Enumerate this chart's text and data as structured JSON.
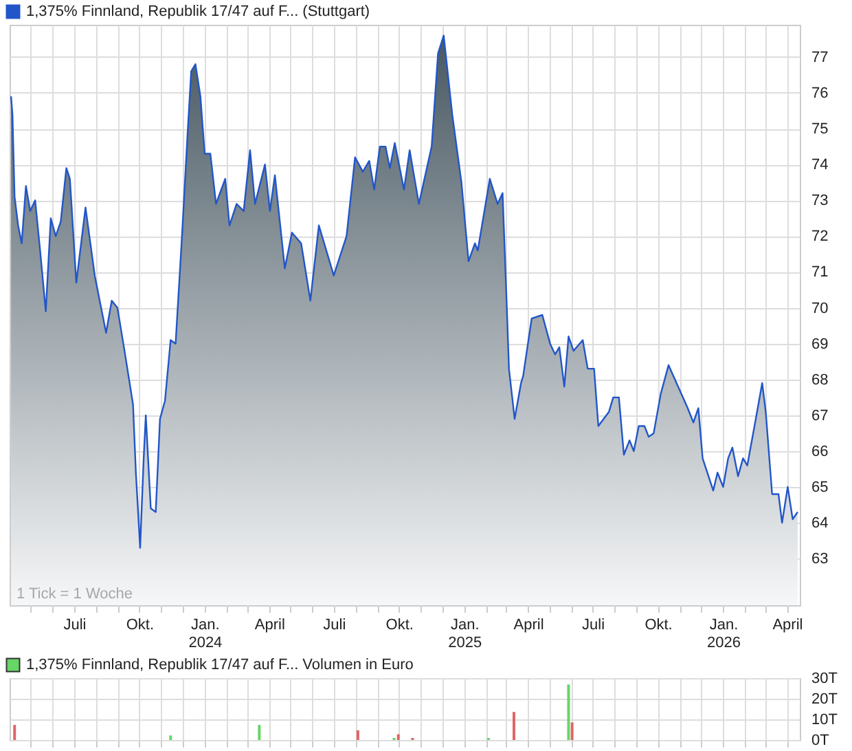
{
  "chart_data": [
    {
      "type": "area",
      "legend": "top left",
      "grid": true,
      "annotations": [
        "1 Tick = 1 Woche"
      ],
      "xlim": [
        "2023-04-01",
        "2026-04-19"
      ],
      "xticks": [
        {
          "value": "2023-05-01",
          "label": null
        },
        {
          "value": "2023-06-01",
          "label": null
        },
        {
          "value": "2023-07-01",
          "label": "Juli"
        },
        {
          "value": "2023-08-01",
          "label": null
        },
        {
          "value": "2023-09-01",
          "label": null
        },
        {
          "value": "2023-10-01",
          "label": "Okt."
        },
        {
          "value": "2023-11-01",
          "label": null
        },
        {
          "value": "2023-12-01",
          "label": null
        },
        {
          "value": "2024-01-01",
          "label": "Jan.\n2024"
        },
        {
          "value": "2024-02-01",
          "label": null
        },
        {
          "value": "2024-03-01",
          "label": null
        },
        {
          "value": "2024-04-01",
          "label": "April"
        },
        {
          "value": "2024-05-01",
          "label": null
        },
        {
          "value": "2024-06-01",
          "label": null
        },
        {
          "value": "2024-07-01",
          "label": "Juli"
        },
        {
          "value": "2024-08-01",
          "label": null
        },
        {
          "value": "2024-09-01",
          "label": null
        },
        {
          "value": "2024-10-01",
          "label": "Okt."
        },
        {
          "value": "2024-11-01",
          "label": null
        },
        {
          "value": "2024-12-01",
          "label": null
        },
        {
          "value": "2025-01-01",
          "label": "Jan.\n2025"
        },
        {
          "value": "2025-02-01",
          "label": null
        },
        {
          "value": "2025-03-01",
          "label": null
        },
        {
          "value": "2025-04-01",
          "label": "April"
        },
        {
          "value": "2025-05-01",
          "label": null
        },
        {
          "value": "2025-06-01",
          "label": null
        },
        {
          "value": "2025-07-01",
          "label": "Juli"
        },
        {
          "value": "2025-08-01",
          "label": null
        },
        {
          "value": "2025-09-01",
          "label": null
        },
        {
          "value": "2025-10-01",
          "label": "Okt."
        },
        {
          "value": "2025-11-01",
          "label": null
        },
        {
          "value": "2025-12-01",
          "label": null
        },
        {
          "value": "2026-01-01",
          "label": "Jan.\n2026"
        },
        {
          "value": "2026-02-01",
          "label": null
        },
        {
          "value": "2026-03-01",
          "label": null
        },
        {
          "value": "2026-04-01",
          "label": "April"
        }
      ],
      "ylim": [
        61.7,
        77.9
      ],
      "yticks": [
        63,
        64,
        65,
        66,
        67,
        68,
        69,
        70,
        71,
        72,
        73,
        74,
        75,
        76,
        77
      ],
      "x": [
        "2023-04-03",
        "2023-04-05",
        "2023-04-08",
        "2023-04-13",
        "2023-04-18",
        "2023-04-24",
        "2023-04-30",
        "2023-05-07",
        "2023-05-14",
        "2023-05-22",
        "2023-05-29",
        "2023-06-05",
        "2023-06-12",
        "2023-06-20",
        "2023-06-25",
        "2023-07-04",
        "2023-07-17",
        "2023-07-30",
        "2023-08-15",
        "2023-08-23",
        "2023-08-31",
        "2023-09-10",
        "2023-09-22",
        "2023-09-26",
        "2023-10-02",
        "2023-10-07",
        "2023-10-10",
        "2023-10-17",
        "2023-10-24",
        "2023-10-30",
        "2023-11-06",
        "2023-11-14",
        "2023-11-21",
        "2023-11-30",
        "2023-12-08",
        "2023-12-13",
        "2023-12-19",
        "2023-12-26",
        "2024-01-01",
        "2024-01-09",
        "2024-01-17",
        "2024-01-30",
        "2024-02-05",
        "2024-02-15",
        "2024-02-25",
        "2024-03-05",
        "2024-03-12",
        "2024-03-26",
        "2024-04-02",
        "2024-04-09",
        "2024-04-23",
        "2024-05-03",
        "2024-05-16",
        "2024-05-29",
        "2024-06-10",
        "2024-07-01",
        "2024-07-19",
        "2024-07-31",
        "2024-08-11",
        "2024-08-20",
        "2024-08-27",
        "2024-09-04",
        "2024-09-12",
        "2024-09-18",
        "2024-09-25",
        "2024-10-08",
        "2024-10-16",
        "2024-10-29",
        "2024-11-16",
        "2024-11-25",
        "2024-12-03",
        "2024-12-15",
        "2024-12-28",
        "2025-01-07",
        "2025-01-16",
        "2025-01-20",
        "2025-02-06",
        "2025-02-17",
        "2025-02-24",
        "2025-03-02",
        "2025-03-05",
        "2025-03-13",
        "2025-03-22",
        "2025-03-25",
        "2025-04-06",
        "2025-04-21",
        "2025-05-02",
        "2025-05-09",
        "2025-05-15",
        "2025-05-22",
        "2025-05-28",
        "2025-06-04",
        "2025-06-17",
        "2025-06-24",
        "2025-07-03",
        "2025-07-09",
        "2025-07-24",
        "2025-07-30",
        "2025-08-07",
        "2025-08-14",
        "2025-08-22",
        "2025-08-28",
        "2025-09-04",
        "2025-09-12",
        "2025-09-18",
        "2025-09-25",
        "2025-10-05",
        "2025-10-16",
        "2025-10-25",
        "2025-11-12",
        "2025-11-20",
        "2025-11-27",
        "2025-12-03",
        "2025-12-18",
        "2025-12-24",
        "2026-01-01",
        "2026-01-08",
        "2026-01-14",
        "2026-01-22",
        "2026-01-29",
        "2026-02-04",
        "2026-02-16",
        "2026-02-25",
        "2026-03-02",
        "2026-03-11",
        "2026-03-20",
        "2026-03-25",
        "2026-04-02",
        "2026-04-09",
        "2026-04-16"
      ],
      "series": [
        {
          "name": "1,375% Finnland, Republik 17/47 auf F... (Stuttgart)",
          "color": "#2256c8",
          "values": [
            75.9,
            75.4,
            73.1,
            72.3,
            71.8,
            73.4,
            72.7,
            73.0,
            71.6,
            69.9,
            72.5,
            72.0,
            72.4,
            73.9,
            73.6,
            70.7,
            72.8,
            70.9,
            69.3,
            70.2,
            70.0,
            68.8,
            67.3,
            65.4,
            63.3,
            65.8,
            67.0,
            64.4,
            64.3,
            66.9,
            67.4,
            69.1,
            69.0,
            72.0,
            74.9,
            76.6,
            76.8,
            75.9,
            74.3,
            74.3,
            72.9,
            73.6,
            72.3,
            72.9,
            72.7,
            74.4,
            72.9,
            74.0,
            72.7,
            73.7,
            71.1,
            72.1,
            71.8,
            70.2,
            72.3,
            70.9,
            72.0,
            74.2,
            73.8,
            74.1,
            73.3,
            74.5,
            74.5,
            73.9,
            74.6,
            73.3,
            74.4,
            72.9,
            74.5,
            77.1,
            77.6,
            75.4,
            73.5,
            71.3,
            71.8,
            71.6,
            73.6,
            72.9,
            73.2,
            70.0,
            68.3,
            66.9,
            67.9,
            68.1,
            69.7,
            69.8,
            69.0,
            68.7,
            68.9,
            67.8,
            69.2,
            68.8,
            69.1,
            68.3,
            68.3,
            66.7,
            67.1,
            67.5,
            67.5,
            65.9,
            66.3,
            66.0,
            66.7,
            66.7,
            66.4,
            66.5,
            67.6,
            68.4,
            68.0,
            67.2,
            66.8,
            67.2,
            65.8,
            64.9,
            65.4,
            65.0,
            65.8,
            66.1,
            65.3,
            65.8,
            65.6,
            66.9,
            67.9,
            67.1,
            64.8,
            64.8,
            64.0,
            65.0,
            64.1,
            64.3
          ]
        }
      ]
    },
    {
      "type": "bar",
      "legend": "top left",
      "grid": true,
      "tick_labels": "y",
      "xlim": [
        "2023-04-01",
        "2026-04-19"
      ],
      "xticks": [
        {
          "value": "2023-05-01",
          "label": null
        },
        {
          "value": "2023-06-01",
          "label": null
        },
        {
          "value": "2023-07-01",
          "label": null
        },
        {
          "value": "2023-08-01",
          "label": null
        },
        {
          "value": "2023-09-01",
          "label": null
        },
        {
          "value": "2023-10-01",
          "label": null
        },
        {
          "value": "2023-11-01",
          "label": null
        },
        {
          "value": "2023-12-01",
          "label": null
        },
        {
          "value": "2024-01-01",
          "label": null
        },
        {
          "value": "2024-02-01",
          "label": null
        },
        {
          "value": "2024-03-01",
          "label": null
        },
        {
          "value": "2024-04-01",
          "label": null
        },
        {
          "value": "2024-05-01",
          "label": null
        },
        {
          "value": "2024-06-01",
          "label": null
        },
        {
          "value": "2024-07-01",
          "label": null
        },
        {
          "value": "2024-08-01",
          "label": null
        },
        {
          "value": "2024-09-01",
          "label": null
        },
        {
          "value": "2024-10-01",
          "label": null
        },
        {
          "value": "2024-11-01",
          "label": null
        },
        {
          "value": "2024-12-01",
          "label": null
        },
        {
          "value": "2025-01-01",
          "label": null
        },
        {
          "value": "2025-02-01",
          "label": null
        },
        {
          "value": "2025-03-01",
          "label": null
        },
        {
          "value": "2025-04-01",
          "label": null
        },
        {
          "value": "2025-05-01",
          "label": null
        },
        {
          "value": "2025-06-01",
          "label": null
        },
        {
          "value": "2025-07-01",
          "label": null
        },
        {
          "value": "2025-08-01",
          "label": null
        },
        {
          "value": "2025-09-01",
          "label": null
        },
        {
          "value": "2025-10-01",
          "label": null
        },
        {
          "value": "2025-11-01",
          "label": null
        },
        {
          "value": "2025-12-01",
          "label": null
        },
        {
          "value": "2026-01-01",
          "label": null
        },
        {
          "value": "2026-02-01",
          "label": null
        },
        {
          "value": "2026-03-01",
          "label": null
        },
        {
          "value": "2026-04-01",
          "label": null
        }
      ],
      "ylim": [
        0,
        30
      ],
      "yticks": [
        {
          "value": 0,
          "label": "0T"
        },
        {
          "value": 10,
          "label": "10T"
        },
        {
          "value": 20,
          "label": "20T"
        },
        {
          "value": 30,
          "label": "30T"
        }
      ],
      "x": [
        "2023-04-08",
        "2023-11-14",
        "2024-03-18",
        "2024-08-04",
        "2024-09-24",
        "2024-09-30",
        "2024-10-20",
        "2025-02-04",
        "2025-03-12",
        "2025-05-28",
        "2025-06-02"
      ],
      "series": [
        {
          "name": "1,375% Finnland, Republik 17/47 auf F... Volumen in Euro",
          "color": "#66d666",
          "values": [
            7.3,
            2.2,
            7.3,
            4.7,
            1.0,
            2.8,
            1.0,
            1.0,
            13.6,
            26.9,
            8.5
          ],
          "colors": [
            "#e06666",
            "#66d666",
            "#66d666",
            "#e06666",
            "#66d666",
            "#e06666",
            "#e06666",
            "#66d666",
            "#e06666",
            "#66d666",
            "#e06666"
          ]
        }
      ]
    }
  ]
}
